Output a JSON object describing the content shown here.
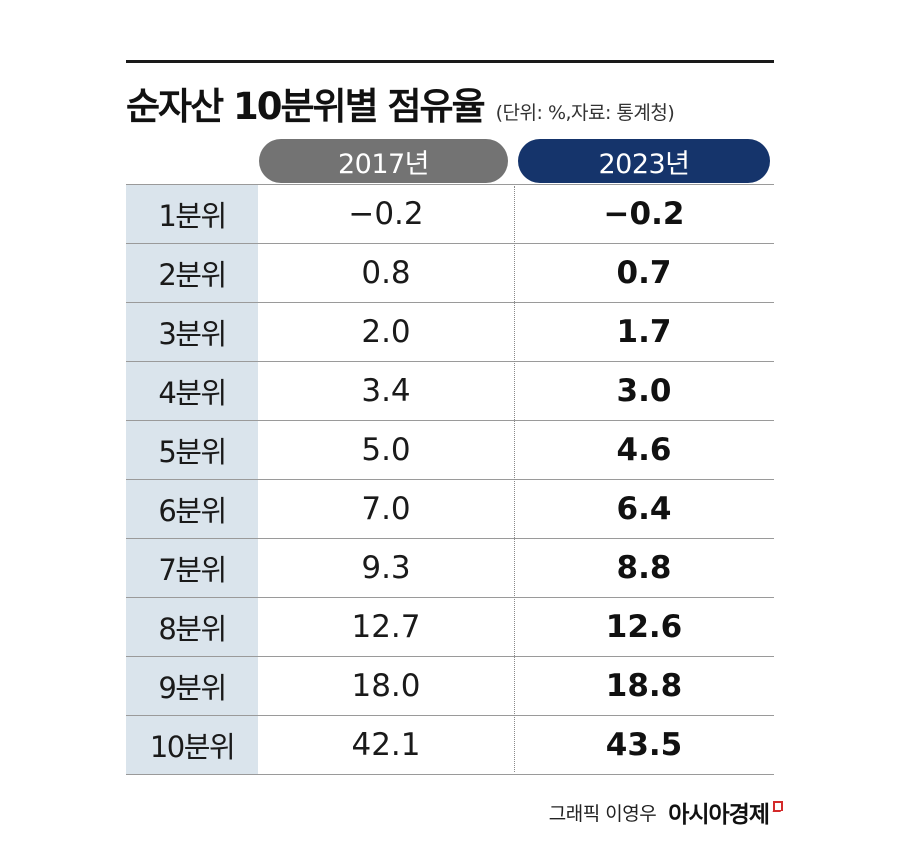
{
  "title": "순자산 10분위별 점유율",
  "subtitle": "(단위: %,자료: 통계청)",
  "credit": {
    "text": "그래픽 이영우",
    "logo_text": "아시아경제",
    "logo_icon": "asiae-logo-mark"
  },
  "colors": {
    "header_2017": "#737373",
    "header_2023": "#15346b",
    "label_bg": "#dae4ec",
    "logo_accent": "#d42a2a"
  },
  "chart_data": {
    "type": "table",
    "columns": [
      "2017년",
      "2023년"
    ],
    "rows": [
      {
        "label": "1분위",
        "y2017": "−0.2",
        "y2023": "−0.2"
      },
      {
        "label": "2분위",
        "y2017": "0.8",
        "y2023": "0.7"
      },
      {
        "label": "3분위",
        "y2017": "2.0",
        "y2023": "1.7"
      },
      {
        "label": "4분위",
        "y2017": "3.4",
        "y2023": "3.0"
      },
      {
        "label": "5분위",
        "y2017": "5.0",
        "y2023": "4.6"
      },
      {
        "label": "6분위",
        "y2017": "7.0",
        "y2023": "6.4"
      },
      {
        "label": "7분위",
        "y2017": "9.3",
        "y2023": "8.8"
      },
      {
        "label": "8분위",
        "y2017": "12.7",
        "y2023": "12.6"
      },
      {
        "label": "9분위",
        "y2017": "18.0",
        "y2023": "18.8"
      },
      {
        "label": "10분위",
        "y2017": "42.1",
        "y2023": "43.5"
      }
    ]
  }
}
